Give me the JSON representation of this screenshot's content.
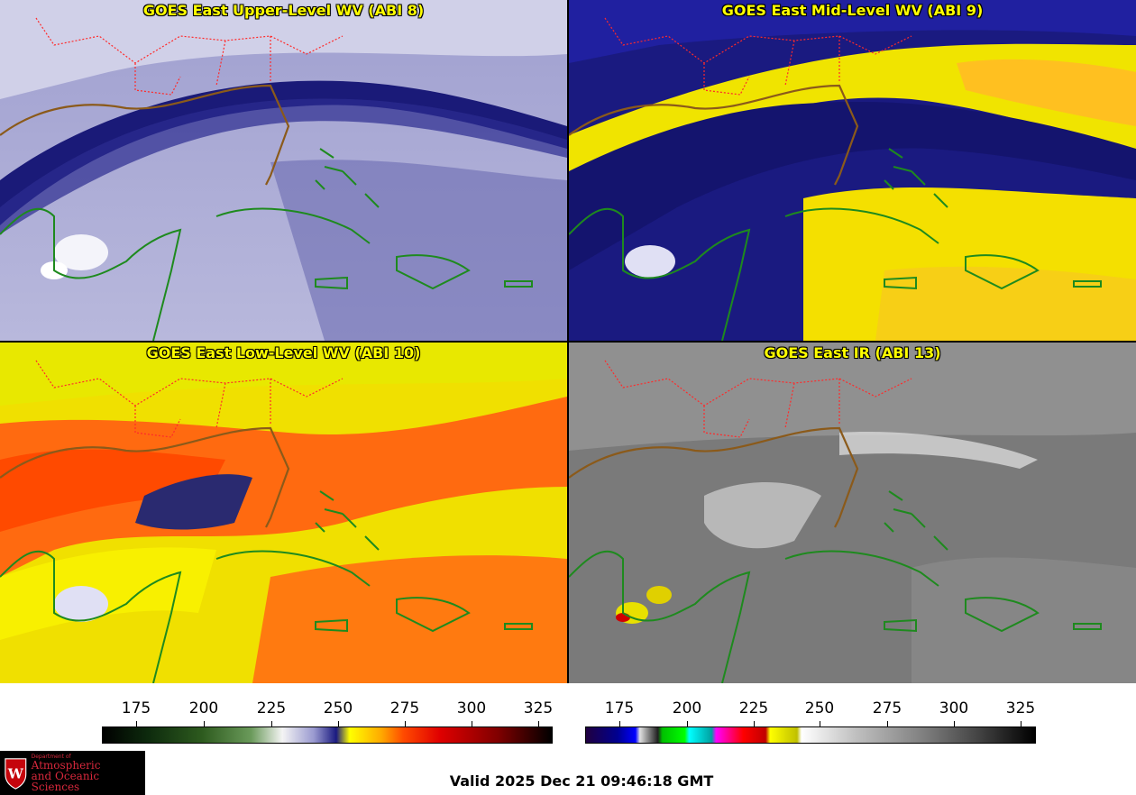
{
  "panels": {
    "upper": {
      "title": "GOES East Upper-Level WV (ABI 8)"
    },
    "mid": {
      "title": "GOES East Mid-Level WV (ABI 9)"
    },
    "low": {
      "title": "GOES East Low-Level WV (ABI 10)"
    },
    "ir": {
      "title": "GOES East IR (ABI 13)"
    }
  },
  "colorbars": {
    "wv": {
      "ticks": [
        "175",
        "200",
        "225",
        "250",
        "275",
        "300",
        "325"
      ]
    },
    "ir": {
      "ticks": [
        "175",
        "200",
        "225",
        "250",
        "275",
        "300",
        "325"
      ]
    }
  },
  "footer": {
    "valid_text": "Valid 2025 Dec 21 09:46:18 GMT",
    "logo_small": "Department of",
    "logo_line1": "Atmospheric",
    "logo_line2": "and Oceanic Sciences"
  },
  "colors": {
    "title_text": "#ffff00",
    "state_borders": "#ff2a2a",
    "coastline": "#1e8a1e"
  }
}
